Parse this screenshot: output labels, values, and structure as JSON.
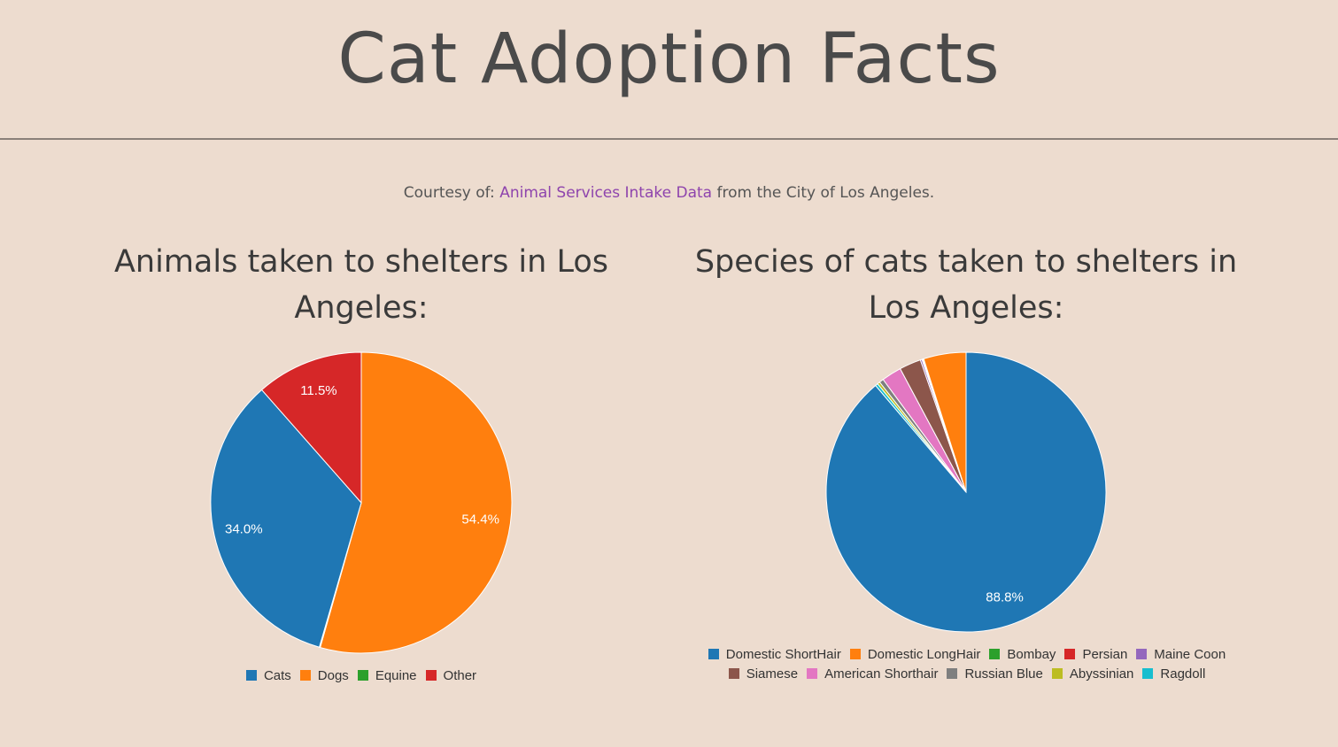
{
  "header": {
    "title": "Cat Adoption Facts"
  },
  "courtesy": {
    "prefix": "Courtesy of:",
    "link_label": "Animal Services Intake Data",
    "suffix": "from the City of Los Angeles."
  },
  "colors": {
    "background": "#eddccf",
    "link": "#8e44ad"
  },
  "chart_data": [
    {
      "type": "pie",
      "title": "Animals taken to shelters in Los Angeles:",
      "labels": [
        "Cats",
        "Dogs",
        "Equine",
        "Other"
      ],
      "values": [
        34.0,
        54.4,
        0.1,
        11.5
      ],
      "value_labels": [
        "34.0%",
        "54.4%",
        "",
        "11.5%"
      ],
      "colors": [
        "#1f77b4",
        "#ff7f0e",
        "#2ca02c",
        "#d62728"
      ],
      "legend": "bottom"
    },
    {
      "type": "pie",
      "title": "Species of cats taken to shelters in Los Angeles:",
      "labels": [
        "Domestic ShortHair",
        "Domestic LongHair",
        "Bombay",
        "Persian",
        "Maine Coon",
        "Siamese",
        "American Shorthair",
        "Russian Blue",
        "Abyssinian",
        "Ragdoll"
      ],
      "values": [
        88.8,
        4.9,
        0.1,
        0.1,
        0.2,
        2.5,
        2.3,
        0.5,
        0.3,
        0.3
      ],
      "value_labels": [
        "88.8%",
        "",
        "",
        "",
        "",
        "",
        "",
        "",
        "",
        ""
      ],
      "colors": [
        "#1f77b4",
        "#ff7f0e",
        "#2ca02c",
        "#d62728",
        "#9467bd",
        "#8c564b",
        "#e377c2",
        "#7f7f7f",
        "#bcbd22",
        "#17becf"
      ],
      "legend": "bottom"
    }
  ]
}
